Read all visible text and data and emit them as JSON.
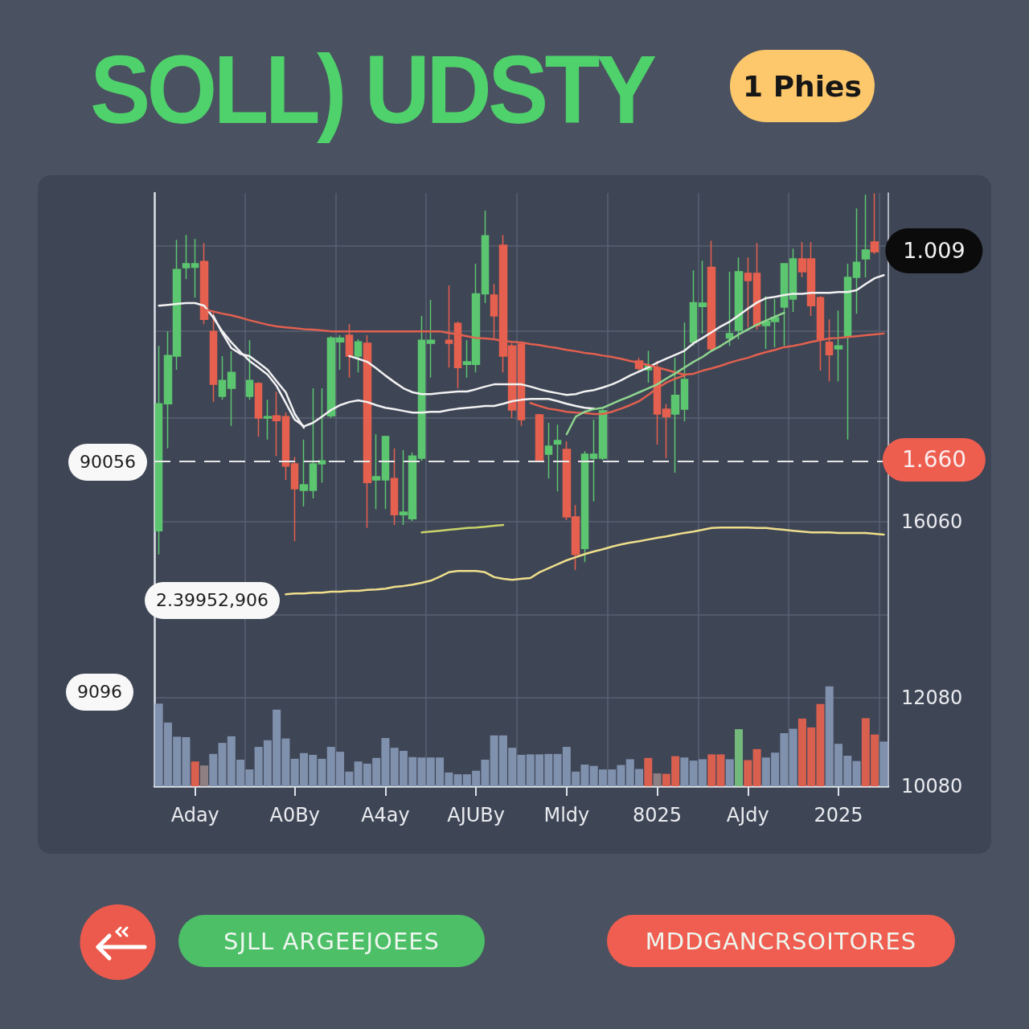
{
  "chart_data": {
    "type": "candlestick",
    "title": "SOLL) UDSTY",
    "categories": [
      null,
      null,
      null,
      null,
      "Aday",
      null,
      null,
      null,
      null,
      null,
      null,
      null,
      null,
      null,
      null,
      "A0By",
      null,
      null,
      null,
      null,
      null,
      null,
      null,
      null,
      null,
      "A4ay",
      null,
      null,
      null,
      null,
      null,
      null,
      null,
      null,
      null,
      "AJUBy",
      null,
      null,
      null,
      null,
      null,
      null,
      null,
      null,
      null,
      "Mldy",
      null,
      null,
      null,
      null,
      null,
      null,
      null,
      null,
      null,
      "8025",
      null,
      null,
      null,
      null,
      null,
      null,
      null,
      null,
      null,
      "AJdy",
      null,
      null,
      null,
      null,
      null,
      null,
      null,
      null,
      null,
      "2025",
      null,
      null,
      null,
      null,
      null
    ],
    "ohlc": [
      [
        15860,
        20040,
        15320,
        18730
      ],
      [
        18730,
        20370,
        17720,
        19820
      ],
      [
        19810,
        22440,
        19500,
        21770
      ],
      [
        21810,
        22550,
        21550,
        21900
      ],
      [
        21820,
        22460,
        21130,
        21900
      ],
      [
        21950,
        22370,
        20530,
        20640
      ],
      [
        20370,
        20820,
        18770,
        19170
      ],
      [
        18900,
        19810,
        18820,
        19260
      ],
      [
        19080,
        19920,
        18230,
        19440
      ],
      null,
      [
        18900,
        20170,
        18820,
        19260
      ],
      [
        19190,
        19220,
        17990,
        18410
      ],
      [
        18410,
        18820,
        17920,
        18440
      ],
      [
        18460,
        19010,
        17550,
        18350
      ],
      [
        18440,
        18530,
        17010,
        17320
      ],
      [
        17370,
        17530,
        15620,
        16810
      ],
      [
        16770,
        17920,
        16410,
        16900
      ],
      [
        16770,
        19080,
        16590,
        17370
      ],
      [
        17370,
        19080,
        16950,
        17440
      ],
      [
        18460,
        20260,
        18410,
        20220
      ],
      [
        20130,
        20280,
        19500,
        20220
      ],
      [
        20280,
        20530,
        19320,
        19810
      ],
      [
        19810,
        20190,
        19440,
        20130
      ],
      [
        20100,
        20280,
        15920,
        16950
      ],
      [
        17010,
        18040,
        16350,
        17080
      ],
      [
        17010,
        18010,
        16350,
        17990
      ],
      [
        17040,
        17720,
        15990,
        16220
      ],
      [
        16220,
        17680,
        15990,
        16280
      ],
      [
        16130,
        17630,
        16080,
        17550
      ],
      [
        17500,
        20720,
        17440,
        20170
      ],
      [
        20100,
        21080,
        19320,
        20170
      ],
      null,
      [
        20170,
        21410,
        19550,
        20100
      ],
      [
        20550,
        20590,
        19080,
        19550
      ],
      [
        19620,
        20170,
        19320,
        19680
      ],
      [
        19620,
        21900,
        19440,
        21220
      ],
      [
        21220,
        23100,
        21010,
        22530
      ],
      [
        21190,
        21440,
        20220,
        20720
      ],
      [
        22320,
        22550,
        19440,
        19810
      ],
      [
        20040,
        20100,
        18410,
        18590
      ],
      [
        20080,
        20130,
        18230,
        18370
      ],
      null,
      [
        18480,
        18500,
        17410,
        17460
      ],
      [
        17590,
        18300,
        17040,
        17770
      ],
      [
        17820,
        18260,
        16750,
        17900
      ],
      [
        17700,
        17880,
        16100,
        16170
      ],
      [
        16170,
        16440,
        14970,
        15320
      ],
      [
        15460,
        17660,
        15150,
        17590
      ],
      [
        17500,
        18370,
        16520,
        17590
      ],
      [
        17500,
        18610,
        17460,
        18570
      ],
      null,
      null,
      null,
      [
        19700,
        19770,
        19460,
        19530
      ],
      [
        19500,
        19930,
        19210,
        19590
      ],
      [
        19550,
        19700,
        17810,
        18500
      ],
      [
        18610,
        18720,
        17500,
        18440
      ],
      [
        18500,
        19770,
        17170,
        18920
      ],
      [
        18610,
        20570,
        18330,
        19280
      ],
      [
        20120,
        21750,
        20040,
        21020
      ],
      [
        20930,
        21970,
        20320,
        21010
      ],
      [
        21820,
        22420,
        19930,
        19970
      ],
      null,
      [
        20220,
        21720,
        20040,
        20320
      ],
      [
        20390,
        22040,
        20190,
        21720
      ],
      [
        21680,
        22040,
        20460,
        21520
      ],
      [
        21680,
        22370,
        20410,
        20500
      ],
      [
        20500,
        21170,
        19970,
        20590
      ],
      [
        20590,
        21100,
        20010,
        20680
      ],
      [
        20920,
        21900,
        20040,
        21900
      ],
      [
        21100,
        22240,
        20810,
        22010
      ],
      [
        22010,
        22390,
        21590,
        21720
      ],
      [
        22010,
        22390,
        20720,
        20950
      ],
      [
        21130,
        21170,
        19480,
        20190
      ],
      [
        20120,
        20640,
        19240,
        19840
      ],
      [
        19970,
        20840,
        19240,
        20040
      ],
      [
        20260,
        21900,
        17920,
        21590
      ],
      [
        21590,
        23150,
        20770,
        21930
      ],
      [
        22010,
        23460,
        21590,
        22210
      ],
      [
        22390,
        23490,
        22120,
        22170
      ],
      null
    ],
    "colors": [
      "#5cc56f",
      "#5cc56f",
      "#5cc56f",
      "#5cc56f",
      "#5cc56f",
      "#e5604e",
      "#e5604e",
      "#5cc56f",
      "#5cc56f",
      null,
      "#5cc56f",
      "#e5604e",
      "#5cc56f",
      "#e5604e",
      "#e5604e",
      "#e5604e",
      "#5cc56f",
      "#5cc56f",
      "#5cc56f",
      "#5cc56f",
      "#5cc56f",
      "#e5604e",
      "#5cc56f",
      "#e5604e",
      "#5cc56f",
      "#5cc56f",
      "#e5604e",
      "#5cc56f",
      "#5cc56f",
      "#5cc56f",
      "#5cc56f",
      null,
      "#e5604e",
      "#e5604e",
      "#5cc56f",
      "#5cc56f",
      "#5cc56f",
      "#e5604e",
      "#e5604e",
      "#e5604e",
      "#e5604e",
      null,
      "#e5604e",
      "#5cc56f",
      "#5cc56f",
      "#e5604e",
      "#e5604e",
      "#5cc56f",
      "#5cc56f",
      "#5cc56f",
      null,
      null,
      null,
      "#e5604e",
      "#5cc56f",
      "#e5604e",
      "#e5604e",
      "#5cc56f",
      "#5cc56f",
      "#5cc56f",
      "#5cc56f",
      "#e5604e",
      null,
      "#5cc56f",
      "#5cc56f",
      "#e5604e",
      "#e5604e",
      "#5cc56f",
      "#5cc56f",
      "#5cc56f",
      "#5cc56f",
      "#e5604e",
      "#e5604e",
      "#e5604e",
      "#e5604e",
      "#5cc56f",
      "#5cc56f",
      "#5cc56f",
      "#5cc56f",
      "#e5604e",
      null
    ],
    "series": [
      {
        "type": "bar",
        "colors": [
          "#8091ae",
          "#8091ae",
          "#8091ae",
          "#8091ae",
          "#d9604f",
          "#8e7f82",
          "#8091ae",
          "#8091ae",
          "#8091ae",
          "#8091ae",
          "#8091ae",
          "#8091ae",
          "#8091ae",
          "#8091ae",
          "#8091ae",
          "#8091ae",
          "#8091ae",
          "#8091ae",
          "#8091ae",
          "#8091ae",
          "#8091ae",
          "#8091ae",
          "#8091ae",
          "#8091ae",
          "#8091ae",
          "#8091ae",
          "#8091ae",
          "#8091ae",
          "#8091ae",
          "#8091ae",
          "#8091ae",
          "#8091ae",
          "#8091ae",
          "#8091ae",
          "#8091ae",
          "#8091ae",
          "#8091ae",
          "#8091ae",
          "#8091ae",
          "#8091ae",
          "#8091ae",
          "#8091ae",
          "#8091ae",
          "#8091ae",
          "#8091ae",
          "#8091ae",
          "#8091ae",
          "#8091ae",
          "#8091ae",
          "#8091ae",
          "#8091ae",
          "#8091ae",
          "#8091ae",
          "#8091ae",
          "#d9604f",
          "#8e7f82",
          "#d9604f",
          "#d9604f",
          "#8091ae",
          "#8091ae",
          "#8091ae",
          "#d9604f",
          "#d9604f",
          "#8091ae",
          "#74b97c",
          "#d9604f",
          "#d9604f",
          "#8091ae",
          "#8091ae",
          "#8091ae",
          "#8091ae",
          "#d9604f",
          "#d9604f",
          "#d9604f",
          "#8091ae",
          "#8091ae",
          "#8091ae",
          "#8091ae",
          "#d9604f",
          "#d9604f",
          "#8091ae"
        ],
        "values": [
          11950,
          11520,
          11200,
          11190,
          10640,
          10550,
          10810,
          11060,
          11210,
          10680,
          10460,
          10970,
          11120,
          11810,
          11160,
          10700,
          10830,
          10790,
          10700,
          10970,
          10860,
          10410,
          10640,
          10590,
          10720,
          11170,
          10950,
          10880,
          10740,
          10730,
          10730,
          10730,
          10390,
          10350,
          10350,
          10430,
          10680,
          11230,
          11230,
          10950,
          10790,
          10800,
          10800,
          10810,
          10810,
          10970,
          10410,
          10570,
          10540,
          10460,
          10460,
          10560,
          10690,
          10470,
          10720,
          10370,
          10360,
          10760,
          10730,
          10660,
          10690,
          10800,
          10800,
          10690,
          11370,
          10670,
          10920,
          10730,
          10840,
          11280,
          11380,
          11610,
          11410,
          11940,
          12340,
          11040,
          10770,
          10650,
          11620,
          11250,
          11090
        ]
      },
      {
        "type": "line",
        "color": "#f2f2f2",
        "values": [
          20950,
          20970,
          20990,
          21010,
          21010,
          20950,
          20680,
          20370,
          20120,
          19900,
          19700,
          19550,
          19390,
          19130,
          18750,
          18370,
          18220,
          18300,
          18440,
          18590,
          18700,
          18770,
          18810,
          18770,
          18700,
          18640,
          18610,
          18570,
          18530,
          18530,
          18550,
          18550,
          18590,
          18620,
          18640,
          18660,
          18680,
          18680,
          18730,
          18790,
          18820,
          18840,
          18840,
          18840,
          18790,
          18730,
          18680,
          18640,
          18620,
          null,
          null,
          null,
          null,
          null,
          null,
          null,
          null,
          null,
          null,
          null,
          null,
          null,
          null,
          null,
          null,
          null,
          null,
          null,
          null,
          null,
          null,
          null,
          null,
          null,
          null,
          null,
          null,
          null,
          null,
          null,
          null
        ]
      },
      {
        "type": "line",
        "color": "#f2f2f2",
        "values": [
          null,
          null,
          null,
          null,
          null,
          null,
          20720,
          20330,
          19990,
          19860,
          19810,
          19660,
          19500,
          19240,
          18990,
          18500,
          18190,
          null,
          null,
          null,
          null,
          19810,
          19750,
          19680,
          19530,
          19370,
          19220,
          19080,
          18990,
          18950,
          18950,
          18970,
          18990,
          19010,
          19010,
          19060,
          19120,
          19170,
          19170,
          19170,
          19170,
          19120,
          19060,
          19010,
          18970,
          18930,
          18950,
          19010,
          19040,
          19100,
          19170,
          19260,
          19370,
          19460,
          19550,
          19660,
          19750,
          19840,
          19930,
          20100,
          20220,
          20350,
          20480,
          20590,
          20730,
          20880,
          21020,
          21120,
          21150,
          21190,
          21220,
          21220,
          21240,
          21240,
          21240,
          21260,
          21260,
          21300,
          21440,
          21570,
          21640
        ]
      },
      {
        "type": "line",
        "color": "#e2604f",
        "values": [
          null,
          null,
          null,
          null,
          null,
          20860,
          20820,
          20770,
          20730,
          20680,
          20620,
          20570,
          20520,
          20480,
          20460,
          20440,
          20420,
          20410,
          20390,
          20370,
          20370,
          20370,
          20370,
          20370,
          20370,
          20370,
          20370,
          20370,
          20370,
          20370,
          20370,
          20370,
          20330,
          20300,
          20260,
          20220,
          20210,
          20190,
          20150,
          20130,
          20120,
          20080,
          20060,
          20020,
          19990,
          19950,
          19920,
          19880,
          19860,
          19820,
          19790,
          19750,
          19700,
          19660,
          19610,
          19550,
          19500,
          19440,
          19390,
          19410,
          19480,
          19530,
          19590,
          19660,
          19720,
          19770,
          19840,
          19900,
          19950,
          20010,
          20040,
          20080,
          20130,
          20170,
          20210,
          20220,
          20240,
          20260,
          20280,
          20300,
          20320
        ]
      },
      {
        "type": "line",
        "color": "#e2604f",
        "values": [
          null,
          null,
          null,
          null,
          null,
          null,
          null,
          null,
          null,
          null,
          null,
          null,
          null,
          null,
          null,
          null,
          null,
          null,
          null,
          null,
          null,
          null,
          null,
          null,
          null,
          null,
          null,
          null,
          null,
          null,
          null,
          null,
          null,
          null,
          null,
          null,
          null,
          null,
          null,
          null,
          null,
          18750,
          18680,
          18620,
          18590,
          18550,
          18530,
          18520,
          18500,
          18500,
          18550,
          18620,
          18700,
          18790,
          18930,
          19080,
          19210,
          19300,
          19370,
          null,
          null,
          null,
          null,
          null,
          null,
          null,
          null,
          null,
          null,
          null,
          null,
          null,
          null,
          null,
          null,
          null,
          null,
          null,
          null,
          null,
          null
        ]
      },
      {
        "type": "line",
        "color": "#8fd68f",
        "values": [
          null,
          null,
          null,
          null,
          null,
          null,
          null,
          null,
          null,
          null,
          null,
          null,
          null,
          null,
          null,
          null,
          null,
          null,
          null,
          null,
          null,
          null,
          null,
          null,
          null,
          null,
          null,
          null,
          null,
          null,
          null,
          null,
          null,
          null,
          null,
          null,
          null,
          null,
          null,
          null,
          null,
          null,
          null,
          null,
          null,
          18040,
          18440,
          18550,
          18610,
          18640,
          18730,
          18820,
          18900,
          18990,
          19080,
          19170,
          19300,
          19420,
          19550,
          19680,
          19790,
          19930,
          20040,
          20170,
          20300,
          20410,
          20520,
          20610,
          20700,
          20790,
          null,
          null,
          null,
          null,
          null,
          null,
          null,
          null,
          null,
          null,
          null
        ]
      },
      {
        "type": "line",
        "color": "#efdf8c",
        "values": [
          null,
          null,
          null,
          null,
          null,
          null,
          null,
          null,
          null,
          null,
          null,
          null,
          null,
          null,
          14420,
          14440,
          14440,
          14460,
          14460,
          14480,
          14480,
          14500,
          14500,
          14520,
          14530,
          14550,
          14590,
          14610,
          14640,
          14680,
          14730,
          14820,
          14920,
          14950,
          14950,
          14950,
          14920,
          14810,
          14770,
          14750,
          14770,
          14790,
          14920,
          15010,
          15100,
          15190,
          15260,
          15330,
          15390,
          15440,
          15500,
          15550,
          15590,
          15620,
          15660,
          15700,
          15730,
          15770,
          15810,
          15840,
          15880,
          15920,
          15930,
          15930,
          15930,
          15930,
          15920,
          15920,
          15900,
          15880,
          15860,
          15840,
          15820,
          15820,
          15820,
          15810,
          15810,
          15810,
          15810,
          15790,
          15770
        ]
      },
      {
        "type": "line",
        "color": "#c9d46a",
        "values": [
          null,
          null,
          null,
          null,
          null,
          null,
          null,
          null,
          null,
          null,
          null,
          null,
          null,
          null,
          null,
          null,
          null,
          null,
          null,
          null,
          null,
          null,
          null,
          null,
          null,
          null,
          null,
          null,
          null,
          15820,
          15840,
          15860,
          15880,
          15900,
          15920,
          15930,
          15950,
          15970,
          15990,
          null,
          null,
          null,
          null,
          null,
          null,
          null,
          null,
          null,
          null,
          null,
          null,
          null,
          null,
          null,
          null,
          null,
          null,
          null,
          null,
          null,
          null,
          null,
          null,
          null,
          null,
          null,
          null,
          null,
          null,
          null,
          null,
          null,
          null,
          null,
          null,
          null,
          null,
          null,
          null,
          null,
          null
        ]
      }
    ],
    "ylim": [
      10080,
      23500
    ],
    "yticks": [
      10080,
      12080,
      {
        "value": 13950,
        "label": null
      },
      16060,
      {
        "value": 18420,
        "label": null
      },
      {
        "value": 20370,
        "label": null
      },
      {
        "value": 22300,
        "label": null
      }
    ],
    "grid": true,
    "marker": "none",
    "line_style": "solid",
    "ref_lines": [
      {
        "axis": "y",
        "value": 17440,
        "color": "#e8e8e8",
        "line_style": "dashed"
      }
    ],
    "annotations": [
      "1 Phies",
      "SJLL ARGEEJOEES",
      "MDDGANCRSOITORES",
      "90056",
      "2.39952,906",
      "9096",
      "1.009",
      "1.660"
    ]
  }
}
